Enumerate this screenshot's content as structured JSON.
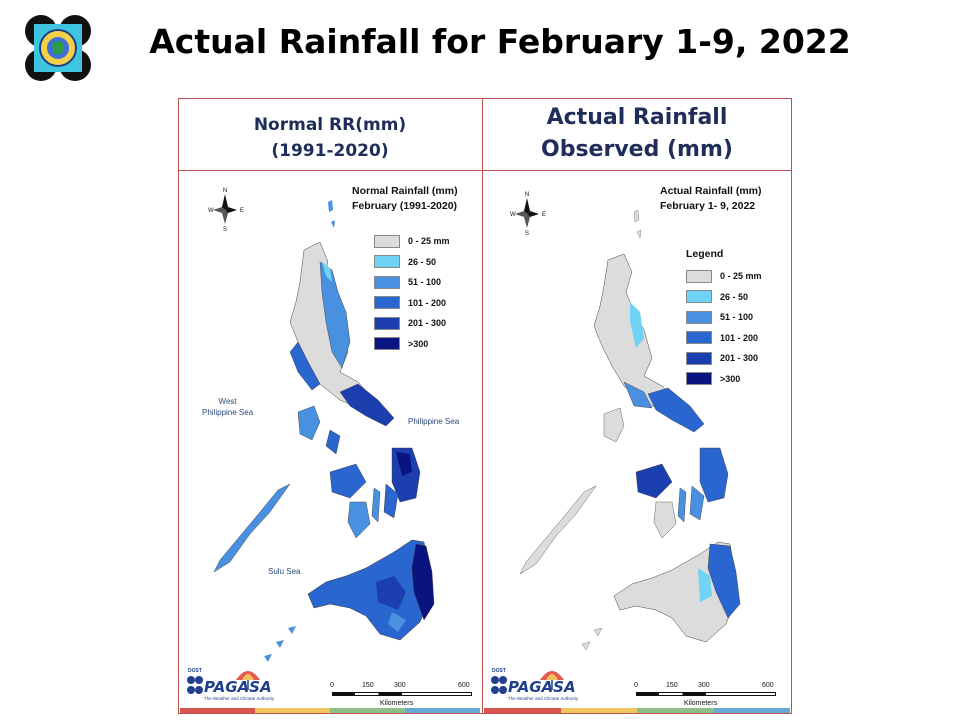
{
  "page_title": "Actual Rainfall for February 1-9, 2022",
  "logo_icon": "pagasa-seal-icon",
  "panels": {
    "left": {
      "header_line1": "Normal RR(mm)",
      "header_line2": "(1991-2020)",
      "map_title_line1": "Normal Rainfall (mm)",
      "map_title_line2": "February (1991-2020)",
      "legend_heading": "",
      "sea_labels": {
        "west_line1": "West",
        "west_line2": "Philippine Sea",
        "east": "Philippine Sea",
        "south": "Sulu Sea"
      }
    },
    "right": {
      "header_line1": "Actual Rainfall",
      "header_line2": "Observed (mm)",
      "map_title_line1": "Actual Rainfall (mm)",
      "map_title_line2": "February 1- 9, 2022",
      "legend_heading": "Legend"
    }
  },
  "legend": [
    {
      "label": "0 - 25 mm",
      "color": "#dcdcdc"
    },
    {
      "label": "26 - 50",
      "color": "#6fd3f5"
    },
    {
      "label": "51 - 100",
      "color": "#4a90e0"
    },
    {
      "label": "101 - 200",
      "color": "#2a66d0"
    },
    {
      "label": "201 - 300",
      "color": "#1c3fb0"
    },
    {
      "label": ">300",
      "color": "#0a1480"
    }
  ],
  "compass": {
    "n": "N",
    "s": "S",
    "e": "E",
    "w": "W"
  },
  "scale_bar": {
    "ticks": [
      "0",
      "150",
      "300",
      "600"
    ],
    "unit": "Kilometers"
  },
  "branding": {
    "name": "PAGASA",
    "tagline": "The Weather and Climate Authority",
    "anniversary": "DOST"
  },
  "stripe_colors": [
    "#d9534f",
    "#f0c75e",
    "#8cc084",
    "#6aa8d8"
  ],
  "frame_color": "#c0504d"
}
